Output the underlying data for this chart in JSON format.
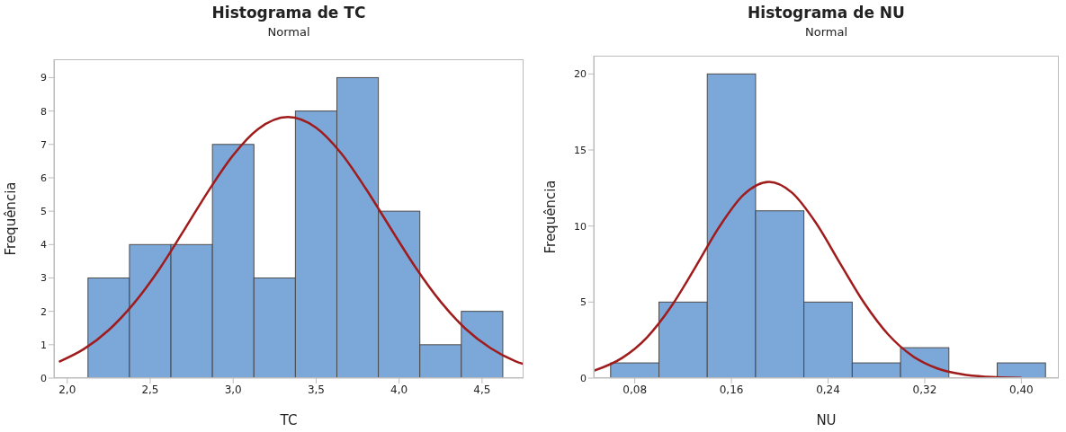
{
  "chart_data": [
    {
      "type": "histogram",
      "title": "Histograma de TC",
      "subtitle": "Normal",
      "xlabel": "TC",
      "ylabel": "Frequência",
      "bins": [
        2.125,
        2.375,
        2.625,
        2.875,
        3.125,
        3.375,
        3.625,
        3.875,
        4.125,
        4.375,
        4.625
      ],
      "values": [
        3,
        4,
        4,
        7,
        3,
        8,
        9,
        5,
        1,
        2
      ],
      "color": "#7ba7d9",
      "xlim": [
        1.92,
        4.75
      ],
      "xticks": [
        {
          "value": 2,
          "label": "2,0"
        },
        {
          "value": 2.5,
          "label": "2,5"
        },
        {
          "value": 3,
          "label": "3,0"
        },
        {
          "value": 3.5,
          "label": "3,5"
        },
        {
          "value": 4,
          "label": "4,0"
        },
        {
          "value": 4.5,
          "label": "4,5"
        }
      ],
      "ylim": [
        0,
        9.55
      ],
      "yticks": [
        0,
        1,
        2,
        3,
        4,
        5,
        6,
        7,
        8,
        9
      ],
      "grid": false,
      "series": [
        {
          "type": "line",
          "color": "#a01c1c",
          "x": [
            1.95,
            2.1,
            2.25,
            2.4,
            2.55,
            2.7,
            2.85,
            3.0,
            3.15,
            3.33,
            3.5,
            3.65,
            3.8,
            3.95,
            4.1,
            4.25,
            4.4,
            4.55,
            4.7,
            4.75
          ],
          "values": [
            0.49,
            0.87,
            1.44,
            2.23,
            3.23,
            4.4,
            5.6,
            6.68,
            7.46,
            7.82,
            7.5,
            6.74,
            5.67,
            4.48,
            3.31,
            2.29,
            1.48,
            0.9,
            0.51,
            0.42
          ]
        }
      ]
    },
    {
      "type": "histogram",
      "title": "Histograma de NU",
      "subtitle": "Normal",
      "xlabel": "NU",
      "ylabel": "Frequência",
      "bins": [
        0.06,
        0.1,
        0.14,
        0.18,
        0.22,
        0.26,
        0.3,
        0.34,
        0.38,
        0.42
      ],
      "values": [
        1,
        5,
        20,
        11,
        5,
        1,
        2,
        0,
        1
      ],
      "color": "#7ba7d9",
      "xlim": [
        0.046,
        0.431
      ],
      "xticks": [
        {
          "value": 0.08,
          "label": "0,08"
        },
        {
          "value": 0.16,
          "label": "0,16"
        },
        {
          "value": 0.24,
          "label": "0,24"
        },
        {
          "value": 0.32,
          "label": "0,32"
        },
        {
          "value": 0.4,
          "label": "0,40"
        }
      ],
      "ylim": [
        0,
        21.2
      ],
      "yticks": [
        0,
        5,
        10,
        15,
        20
      ],
      "grid": false,
      "series": [
        {
          "type": "line",
          "color": "#a01c1c",
          "x": [
            0.046,
            0.07,
            0.09,
            0.11,
            0.13,
            0.15,
            0.17,
            0.191,
            0.21,
            0.23,
            0.25,
            0.27,
            0.29,
            0.31,
            0.33,
            0.35,
            0.37,
            0.4
          ],
          "values": [
            0.48,
            1.35,
            2.67,
            4.69,
            7.27,
            9.95,
            12.05,
            12.9,
            12.2,
            10.2,
            7.54,
            4.93,
            2.85,
            1.45,
            0.65,
            0.26,
            0.09,
            0.02
          ]
        }
      ]
    }
  ]
}
